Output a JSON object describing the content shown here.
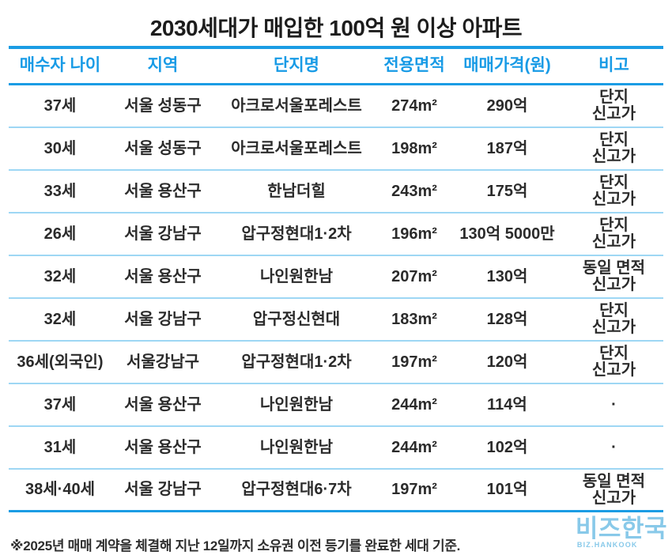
{
  "title": "2030세대가 매입한 100억 원 이상 아파트",
  "table": {
    "headers": [
      "매수자 나이",
      "지역",
      "단지명",
      "전용면적",
      "매매가격(원)",
      "비고"
    ],
    "rows": [
      {
        "age": "37세",
        "region": "서울 성동구",
        "complex": "아크로서울포레스트",
        "area": "274m²",
        "price": "290억",
        "note": "단지\n신고가"
      },
      {
        "age": "30세",
        "region": "서울 성동구",
        "complex": "아크로서울포레스트",
        "area": "198m²",
        "price": "187억",
        "note": "단지\n신고가"
      },
      {
        "age": "33세",
        "region": "서울 용산구",
        "complex": "한남더힐",
        "area": "243m²",
        "price": "175억",
        "note": "단지\n신고가"
      },
      {
        "age": "26세",
        "region": "서울 강남구",
        "complex": "압구정현대1·2차",
        "area": "196m²",
        "price": "130억 5000만",
        "note": "단지\n신고가"
      },
      {
        "age": "32세",
        "region": "서울 용산구",
        "complex": "나인원한남",
        "area": "207m²",
        "price": "130억",
        "note": "동일 면적\n신고가"
      },
      {
        "age": "32세",
        "region": "서울 강남구",
        "complex": "압구정신현대",
        "area": "183m²",
        "price": "128억",
        "note": "단지\n신고가"
      },
      {
        "age": "36세(외국인)",
        "region": "서울강남구",
        "complex": "압구정현대1·2차",
        "area": "197m²",
        "price": "120억",
        "note": "단지\n신고가"
      },
      {
        "age": "37세",
        "region": "서울 용산구",
        "complex": "나인원한남",
        "area": "244m²",
        "price": "114억",
        "note": "·"
      },
      {
        "age": "31세",
        "region": "서울 용산구",
        "complex": "나인원한남",
        "area": "244m²",
        "price": "102억",
        "note": "·"
      },
      {
        "age": "38세·40세",
        "region": "서울 강남구",
        "complex": "압구정현대6·7차",
        "area": "197m²",
        "price": "101억",
        "note": "동일 면적\n신고가"
      }
    ]
  },
  "footnote": "※2025년 매매 계약을 체결해 지난 12일까지 소유권 이전 등기를 완료한 세대 기준.",
  "logo": {
    "name": "비즈한국",
    "subtitle": "BIZ.HANKOOK"
  },
  "colors": {
    "accent_blue": "#1b9ce4",
    "separator_blue": "#9ed7f4",
    "logo_blue": "#7ec5e8",
    "title_black": "#1d1d1d",
    "body_text": "#2b2b2b"
  }
}
